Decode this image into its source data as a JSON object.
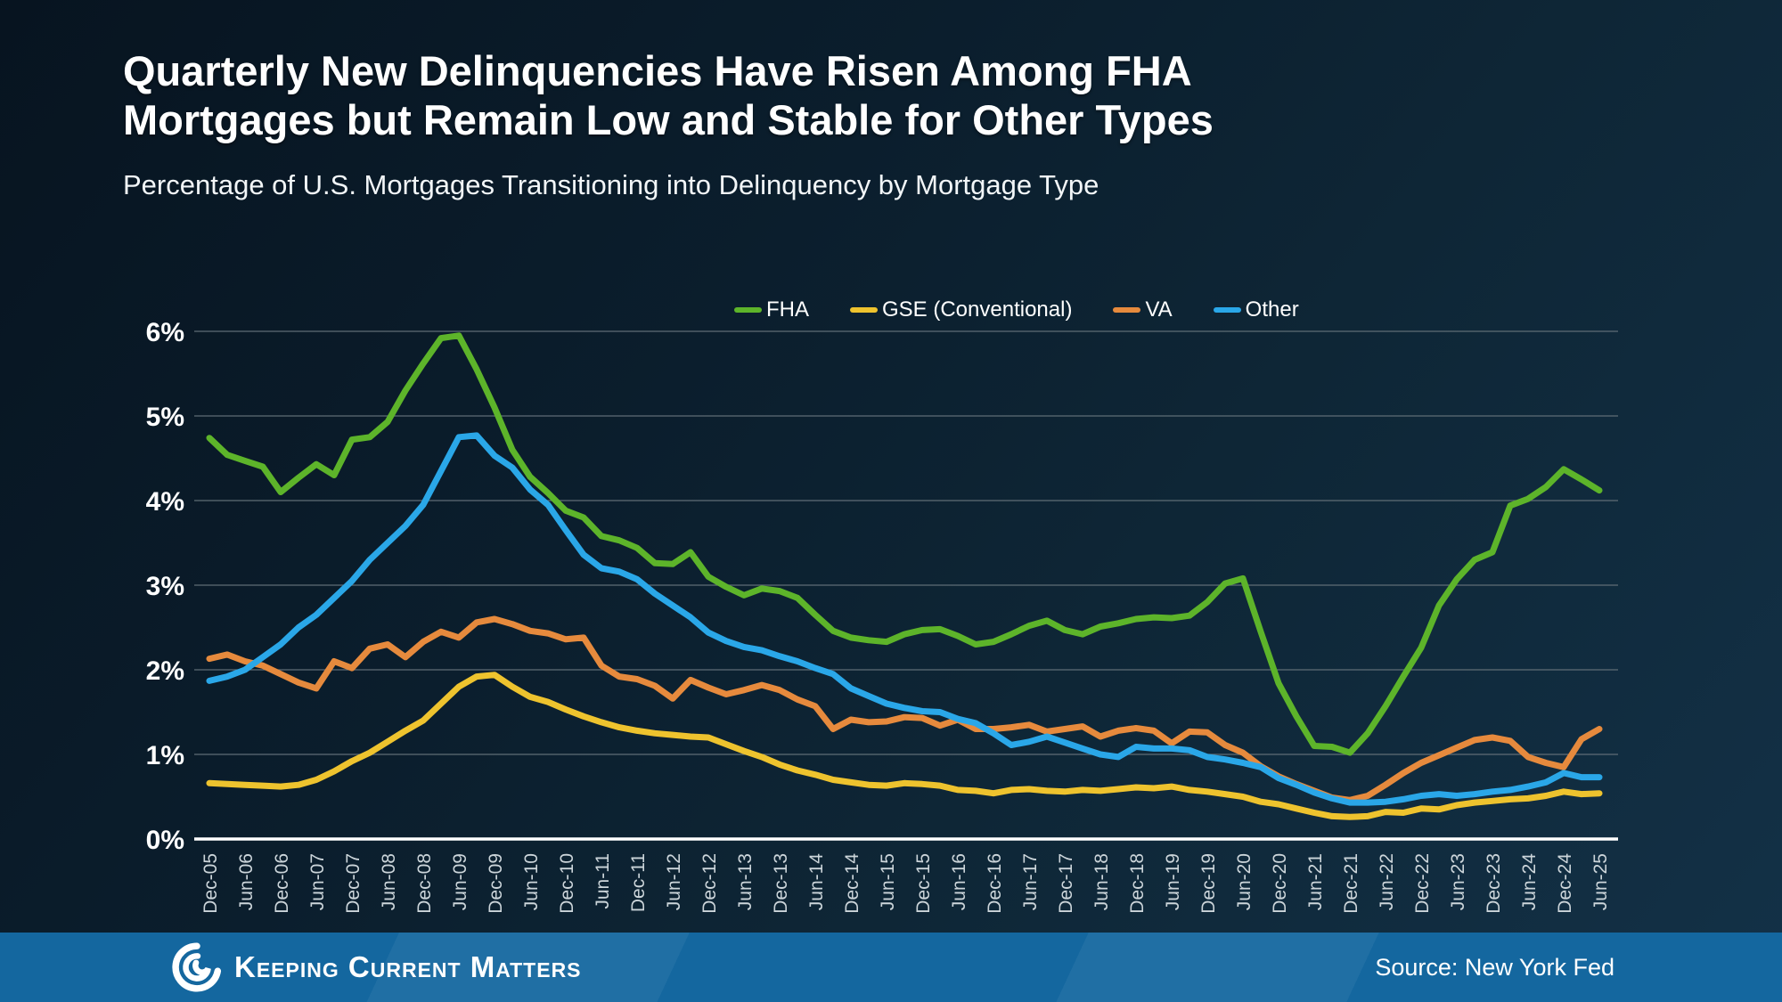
{
  "chart_data": {
    "type": "line",
    "title": "Quarterly New Delinquencies Have Risen Among FHA Mortgages but Remain Low and Stable for Other Types",
    "subtitle": "Percentage of U.S. Mortgages Transitioning into Delinquency by Mortgage Type",
    "xlabel": "",
    "ylabel": "",
    "ylim": [
      0,
      6
    ],
    "yticks": [
      "0%",
      "1%",
      "2%",
      "3%",
      "4%",
      "5%",
      "6%"
    ],
    "grid": "horizontal",
    "grid_color": "#5f6d76",
    "axis_color": "#ffffff",
    "legend_position": "top-center",
    "x_label_step": 2,
    "categories": [
      "Dec-05",
      "Mar-06",
      "Jun-06",
      "Sep-06",
      "Dec-06",
      "Mar-07",
      "Jun-07",
      "Sep-07",
      "Dec-07",
      "Mar-08",
      "Jun-08",
      "Sep-08",
      "Dec-08",
      "Mar-09",
      "Jun-09",
      "Sep-09",
      "Dec-09",
      "Mar-10",
      "Jun-10",
      "Sep-10",
      "Dec-10",
      "Mar-11",
      "Jun-11",
      "Sep-11",
      "Dec-11",
      "Mar-12",
      "Jun-12",
      "Sep-12",
      "Dec-12",
      "Mar-13",
      "Jun-13",
      "Sep-13",
      "Dec-13",
      "Mar-14",
      "Jun-14",
      "Sep-14",
      "Dec-14",
      "Mar-15",
      "Jun-15",
      "Sep-15",
      "Dec-15",
      "Mar-16",
      "Jun-16",
      "Sep-16",
      "Dec-16",
      "Mar-17",
      "Jun-17",
      "Sep-17",
      "Dec-17",
      "Mar-18",
      "Jun-18",
      "Sep-18",
      "Dec-18",
      "Mar-19",
      "Jun-19",
      "Sep-19",
      "Dec-19",
      "Mar-20",
      "Jun-20",
      "Sep-20",
      "Dec-20",
      "Mar-21",
      "Jun-21",
      "Sep-21",
      "Dec-21",
      "Mar-22",
      "Jun-22",
      "Sep-22",
      "Dec-22",
      "Mar-23",
      "Jun-23",
      "Sep-23",
      "Dec-23",
      "Mar-24",
      "Jun-24",
      "Sep-24",
      "Dec-24",
      "Mar-25",
      "Jun-25"
    ],
    "series": [
      {
        "name": "FHA",
        "color": "#5db42a",
        "values": [
          4.74,
          4.54,
          4.47,
          4.4,
          4.1,
          4.27,
          4.43,
          4.3,
          4.72,
          4.75,
          4.93,
          5.3,
          5.62,
          5.92,
          5.95,
          5.55,
          5.1,
          4.6,
          4.28,
          4.09,
          3.88,
          3.8,
          3.58,
          3.53,
          3.44,
          3.26,
          3.25,
          3.39,
          3.1,
          2.98,
          2.88,
          2.96,
          2.93,
          2.85,
          2.65,
          2.46,
          2.38,
          2.35,
          2.33,
          2.42,
          2.47,
          2.48,
          2.4,
          2.3,
          2.33,
          2.42,
          2.52,
          2.58,
          2.47,
          2.42,
          2.51,
          2.55,
          2.6,
          2.62,
          2.61,
          2.64,
          2.8,
          3.02,
          3.08,
          2.45,
          1.84,
          1.45,
          1.1,
          1.09,
          1.02,
          1.25,
          1.57,
          1.92,
          2.26,
          2.76,
          3.07,
          3.3,
          3.39,
          3.94,
          4.02,
          4.16,
          4.37,
          4.25,
          4.12
        ]
      },
      {
        "name": "GSE (Conventional)",
        "color": "#eec32e",
        "values": [
          0.66,
          0.65,
          0.64,
          0.63,
          0.62,
          0.64,
          0.7,
          0.8,
          0.92,
          1.02,
          1.15,
          1.28,
          1.4,
          1.6,
          1.8,
          1.92,
          1.94,
          1.8,
          1.68,
          1.62,
          1.53,
          1.45,
          1.38,
          1.32,
          1.28,
          1.25,
          1.23,
          1.21,
          1.2,
          1.12,
          1.04,
          0.97,
          0.88,
          0.81,
          0.76,
          0.7,
          0.67,
          0.64,
          0.63,
          0.66,
          0.65,
          0.63,
          0.58,
          0.57,
          0.54,
          0.58,
          0.59,
          0.57,
          0.56,
          0.58,
          0.57,
          0.59,
          0.61,
          0.6,
          0.62,
          0.58,
          0.56,
          0.53,
          0.5,
          0.44,
          0.41,
          0.36,
          0.31,
          0.27,
          0.26,
          0.27,
          0.32,
          0.31,
          0.36,
          0.35,
          0.4,
          0.43,
          0.45,
          0.47,
          0.48,
          0.51,
          0.56,
          0.53,
          0.54
        ]
      },
      {
        "name": "VA",
        "color": "#e68a3d",
        "values": [
          2.13,
          2.18,
          2.1,
          2.05,
          1.95,
          1.85,
          1.78,
          2.1,
          2.02,
          2.25,
          2.3,
          2.15,
          2.33,
          2.45,
          2.38,
          2.56,
          2.6,
          2.54,
          2.46,
          2.43,
          2.36,
          2.38,
          2.05,
          1.92,
          1.89,
          1.81,
          1.66,
          1.88,
          1.79,
          1.71,
          1.76,
          1.82,
          1.76,
          1.65,
          1.57,
          1.3,
          1.41,
          1.38,
          1.39,
          1.44,
          1.43,
          1.34,
          1.41,
          1.3,
          1.3,
          1.32,
          1.35,
          1.27,
          1.3,
          1.33,
          1.21,
          1.28,
          1.31,
          1.28,
          1.13,
          1.27,
          1.26,
          1.11,
          1.02,
          0.86,
          0.74,
          0.65,
          0.57,
          0.49,
          0.46,
          0.51,
          0.64,
          0.78,
          0.9,
          0.99,
          1.08,
          1.17,
          1.2,
          1.16,
          0.97,
          0.9,
          0.85,
          1.18,
          1.3
        ]
      },
      {
        "name": "Other",
        "color": "#2aa7e8",
        "values": [
          1.87,
          1.92,
          2.0,
          2.15,
          2.3,
          2.5,
          2.65,
          2.85,
          3.05,
          3.3,
          3.5,
          3.7,
          3.95,
          4.35,
          4.75,
          4.77,
          4.53,
          4.39,
          4.13,
          3.95,
          3.65,
          3.36,
          3.2,
          3.16,
          3.07,
          2.9,
          2.76,
          2.62,
          2.44,
          2.34,
          2.27,
          2.23,
          2.16,
          2.1,
          2.02,
          1.95,
          1.78,
          1.69,
          1.6,
          1.55,
          1.51,
          1.5,
          1.42,
          1.37,
          1.25,
          1.11,
          1.15,
          1.21,
          1.14,
          1.07,
          1.0,
          0.97,
          1.09,
          1.07,
          1.07,
          1.05,
          0.97,
          0.94,
          0.9,
          0.85,
          0.72,
          0.64,
          0.55,
          0.48,
          0.43,
          0.43,
          0.44,
          0.47,
          0.51,
          0.53,
          0.51,
          0.53,
          0.56,
          0.58,
          0.62,
          0.67,
          0.78,
          0.73,
          0.73
        ]
      }
    ],
    "draw_order": [
      1,
      2,
      3,
      0
    ]
  },
  "footer": {
    "brand": "Keeping Current Matters",
    "source": "Source: New York Fed"
  }
}
